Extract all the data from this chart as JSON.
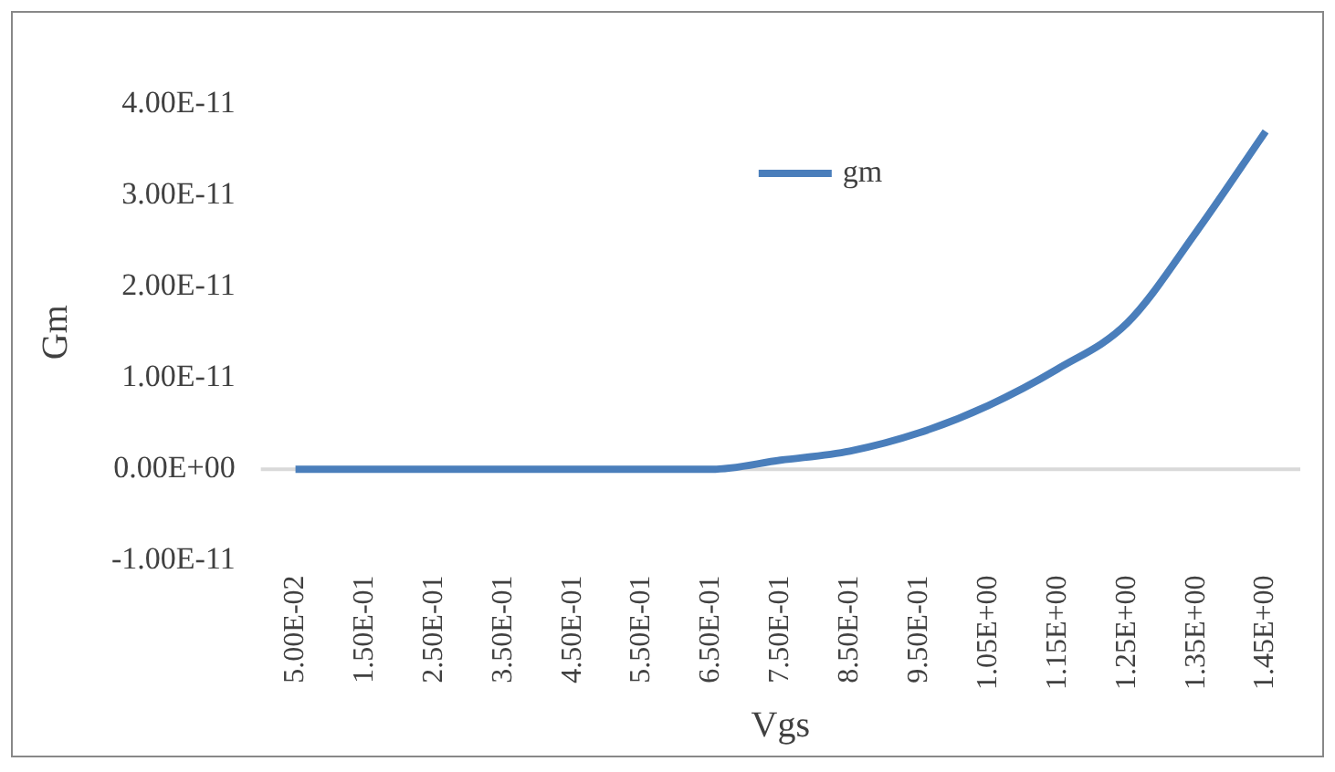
{
  "chart_data": {
    "type": "line",
    "xlabel": "Vgs",
    "ylabel": "Gm",
    "categories": [
      "5.00E-02",
      "1.50E-01",
      "2.50E-01",
      "3.50E-01",
      "4.50E-01",
      "5.50E-01",
      "6.50E-01",
      "7.50E-01",
      "8.50E-01",
      "9.50E-01",
      "1.05E+00",
      "1.15E+00",
      "1.25E+00",
      "1.35E+00",
      "1.45E+00"
    ],
    "series": [
      {
        "name": "gm",
        "color": "#4a7ebb",
        "values": [
          0,
          0,
          0,
          0,
          0,
          0,
          0,
          1e-12,
          2e-12,
          4e-12,
          7e-12,
          1.1e-11,
          1.6e-11,
          2.6e-11,
          3.7e-11
        ]
      }
    ],
    "ref_lines": [
      {
        "axis": "y",
        "value": 0,
        "color": "#d9d9d9"
      }
    ],
    "ylim": [
      -1e-11,
      4e-11
    ],
    "yticks": [
      {
        "value": -1e-11,
        "label": "-1.00E-11"
      },
      {
        "value": 0,
        "label": "0.00E+00"
      },
      {
        "value": 1e-11,
        "label": "1.00E-11"
      },
      {
        "value": 2e-11,
        "label": "2.00E-11"
      },
      {
        "value": 3e-11,
        "label": "3.00E-11"
      },
      {
        "value": 4e-11,
        "label": "4.00E-11"
      }
    ],
    "grid": false,
    "legend": "top",
    "marker": "none",
    "line_style": "solid"
  }
}
